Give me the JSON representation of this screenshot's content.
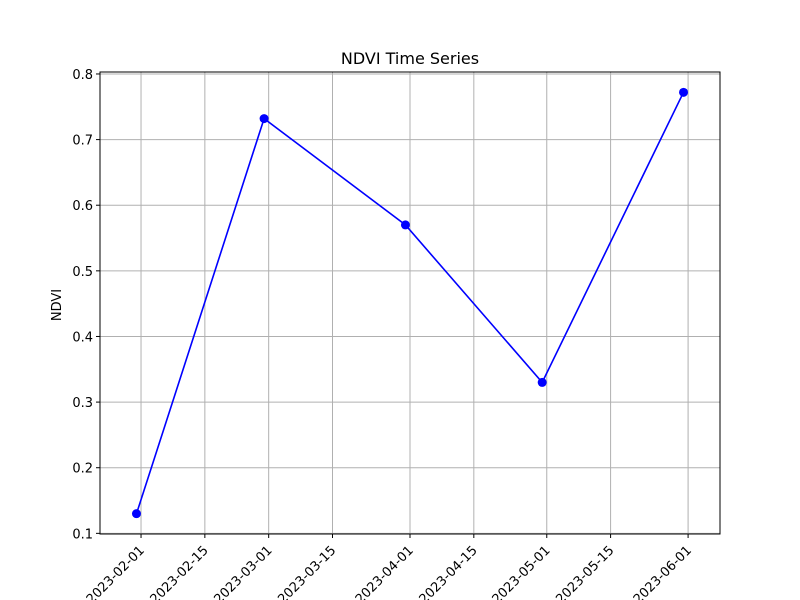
{
  "chart_data": {
    "type": "line",
    "title": "NDVI Time Series",
    "xlabel": "",
    "ylabel": "NDVI",
    "x": [
      "2023-01-31",
      "2023-02-28",
      "2023-03-31",
      "2023-04-30",
      "2023-05-31"
    ],
    "series": [
      {
        "values": [
          0.13,
          0.732,
          0.57,
          0.33,
          0.772
        ]
      }
    ],
    "x_ticks": [
      "2023-02-01",
      "2023-02-15",
      "2023-03-01",
      "2023-03-15",
      "2023-04-01",
      "2023-04-15",
      "2023-05-01",
      "2023-05-15",
      "2023-06-01"
    ],
    "y_ticks": [
      "0.1",
      "0.2",
      "0.3",
      "0.4",
      "0.5",
      "0.6",
      "0.7",
      "0.8"
    ],
    "xlim": [
      "2023-01-23",
      "2023-06-08"
    ],
    "ylim": [
      0.099,
      0.803
    ],
    "grid": true,
    "marker": "circle",
    "colors": {
      "line": "#0000ff",
      "grid": "#b0b0b0",
      "axis": "#000000"
    }
  }
}
